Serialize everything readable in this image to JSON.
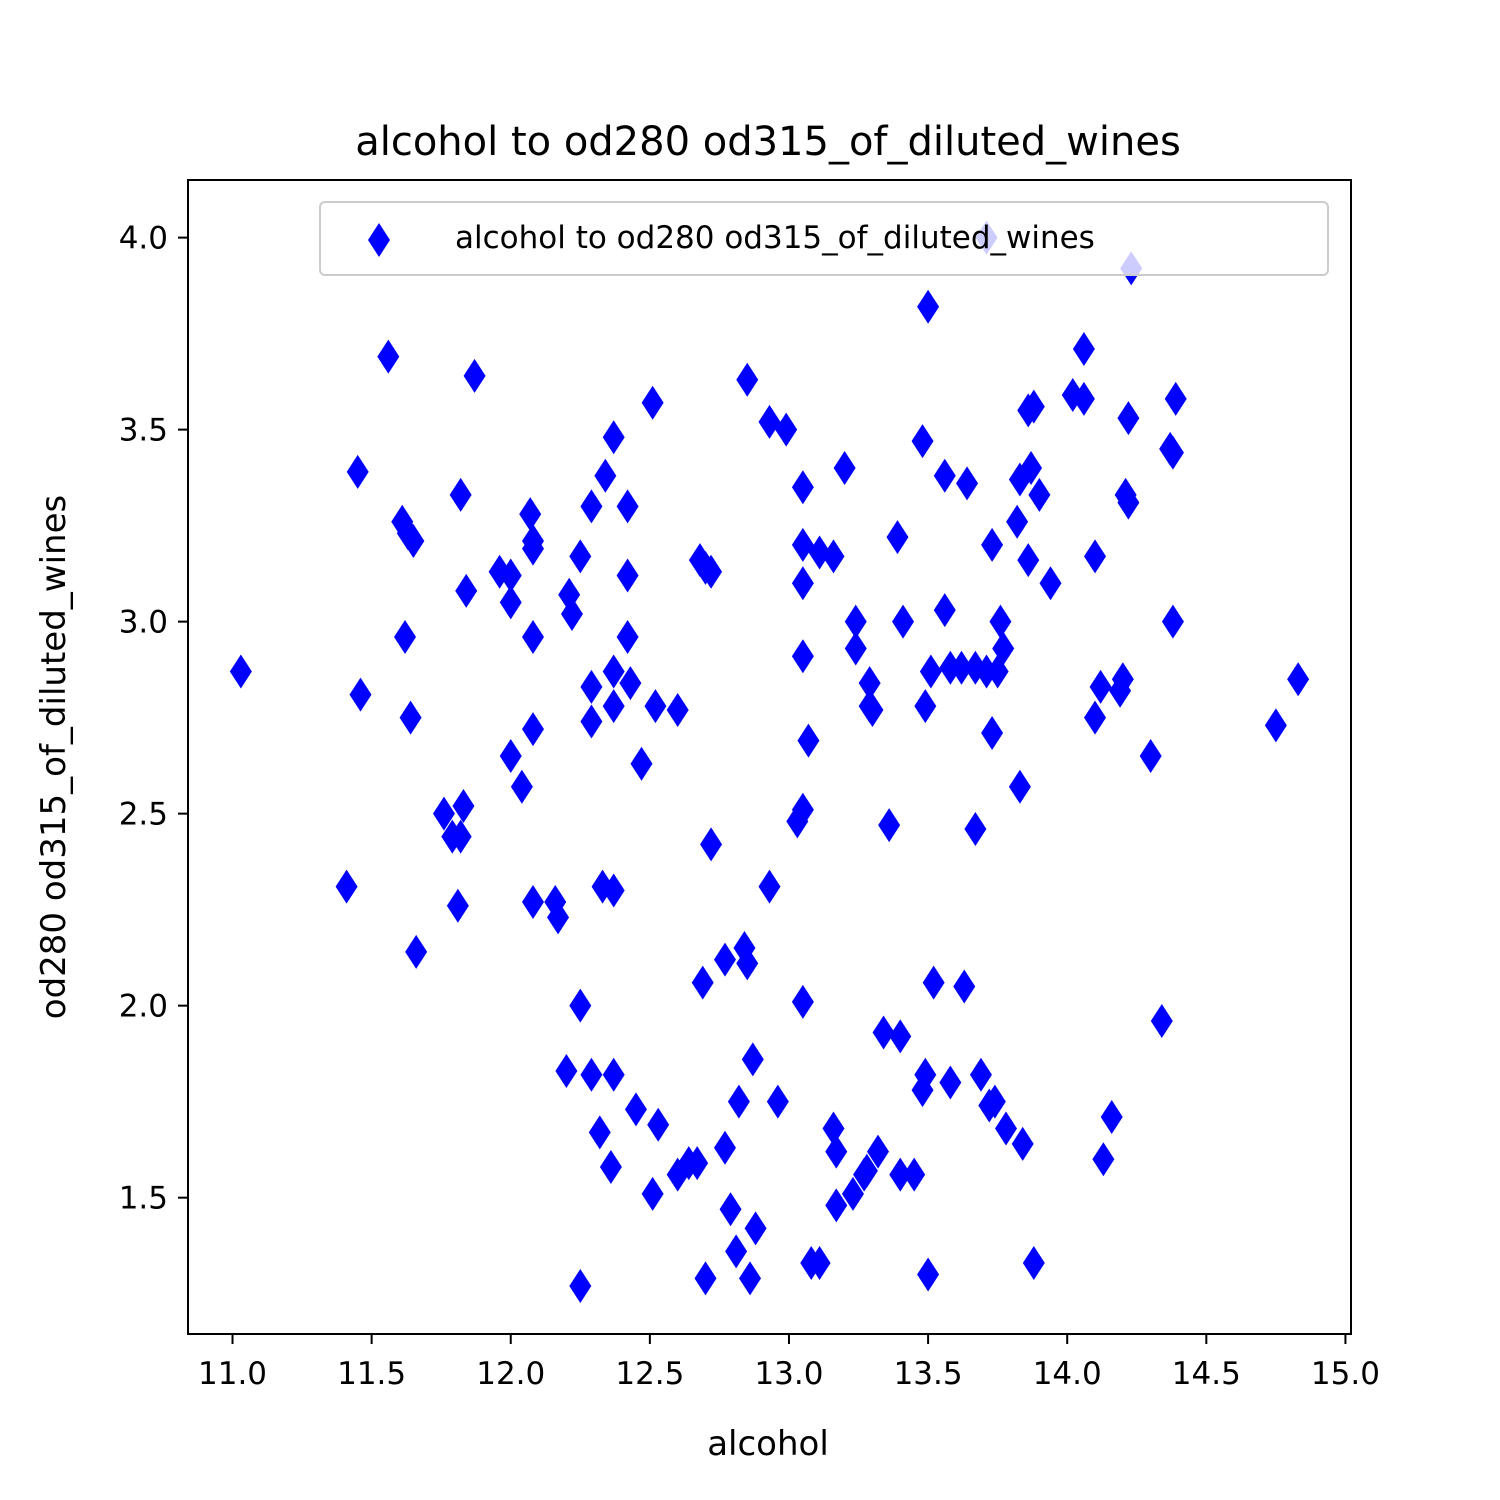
{
  "chart_data": {
    "type": "scatter",
    "title": "alcohol to od280 od315_of_diluted_wines",
    "xlabel": "alcohol",
    "ylabel": "od280 od315_of_diluted_wines",
    "xlim": [
      10.84,
      15.02
    ],
    "ylim": [
      1.145,
      4.15
    ],
    "xticks": [
      "11.0",
      "11.5",
      "12.0",
      "12.5",
      "13.0",
      "13.5",
      "14.0",
      "14.5",
      "15.0"
    ],
    "yticks": [
      "1.5",
      "2.0",
      "2.5",
      "3.0",
      "3.5",
      "4.0"
    ],
    "grid": false,
    "legend_placement": "upper right",
    "series": [
      {
        "name": "alcohol to od280 od315_of_diluted_wines",
        "marker": "thin-diamond",
        "color": "#0000ff",
        "points": [
          [
            11.03,
            2.87
          ],
          [
            11.41,
            2.31
          ],
          [
            11.45,
            3.39
          ],
          [
            11.46,
            2.81
          ],
          [
            11.56,
            3.69
          ],
          [
            11.61,
            3.26
          ],
          [
            11.62,
            2.96
          ],
          [
            11.63,
            3.23
          ],
          [
            11.64,
            2.75
          ],
          [
            11.65,
            3.21
          ],
          [
            11.66,
            2.14
          ],
          [
            11.76,
            2.5
          ],
          [
            11.79,
            2.44
          ],
          [
            11.81,
            2.26
          ],
          [
            11.82,
            2.44
          ],
          [
            11.82,
            3.33
          ],
          [
            11.83,
            2.52
          ],
          [
            11.84,
            3.08
          ],
          [
            11.87,
            3.64
          ],
          [
            11.96,
            3.13
          ],
          [
            12.0,
            2.65
          ],
          [
            12.0,
            3.05
          ],
          [
            12.0,
            3.12
          ],
          [
            12.04,
            2.57
          ],
          [
            12.07,
            3.28
          ],
          [
            12.08,
            2.72
          ],
          [
            12.08,
            2.96
          ],
          [
            12.08,
            3.19
          ],
          [
            12.08,
            3.21
          ],
          [
            12.08,
            2.27
          ],
          [
            12.16,
            2.27
          ],
          [
            12.17,
            2.23
          ],
          [
            12.2,
            1.83
          ],
          [
            12.21,
            3.07
          ],
          [
            12.22,
            3.02
          ],
          [
            12.25,
            3.17
          ],
          [
            12.25,
            2.0
          ],
          [
            12.25,
            1.27
          ],
          [
            12.29,
            1.82
          ],
          [
            12.29,
            2.74
          ],
          [
            12.29,
            2.83
          ],
          [
            12.29,
            3.3
          ],
          [
            12.32,
            1.67
          ],
          [
            12.33,
            2.31
          ],
          [
            12.34,
            3.38
          ],
          [
            12.36,
            1.58
          ],
          [
            12.37,
            1.82
          ],
          [
            12.37,
            2.3
          ],
          [
            12.37,
            2.87
          ],
          [
            12.37,
            2.78
          ],
          [
            12.37,
            3.48
          ],
          [
            12.42,
            3.3
          ],
          [
            12.42,
            2.96
          ],
          [
            12.42,
            3.12
          ],
          [
            12.43,
            2.84
          ],
          [
            12.45,
            1.73
          ],
          [
            12.47,
            2.63
          ],
          [
            12.51,
            1.51
          ],
          [
            12.51,
            3.57
          ],
          [
            12.52,
            2.78
          ],
          [
            12.53,
            1.69
          ],
          [
            12.6,
            1.56
          ],
          [
            12.6,
            2.77
          ],
          [
            12.64,
            1.59
          ],
          [
            12.67,
            1.59
          ],
          [
            12.68,
            3.16
          ],
          [
            12.69,
            2.06
          ],
          [
            12.7,
            3.14
          ],
          [
            12.7,
            1.29
          ],
          [
            12.72,
            2.42
          ],
          [
            12.72,
            3.13
          ],
          [
            12.77,
            2.12
          ],
          [
            12.77,
            1.63
          ],
          [
            12.79,
            1.47
          ],
          [
            12.81,
            1.36
          ],
          [
            12.82,
            1.75
          ],
          [
            12.84,
            2.15
          ],
          [
            12.85,
            3.63
          ],
          [
            12.85,
            2.11
          ],
          [
            12.86,
            1.29
          ],
          [
            12.87,
            1.86
          ],
          [
            12.88,
            1.42
          ],
          [
            12.93,
            3.52
          ],
          [
            12.93,
            2.31
          ],
          [
            12.96,
            1.75
          ],
          [
            12.99,
            3.5
          ],
          [
            13.03,
            2.48
          ],
          [
            13.05,
            3.35
          ],
          [
            13.05,
            3.2
          ],
          [
            13.05,
            3.1
          ],
          [
            13.05,
            2.91
          ],
          [
            13.05,
            2.51
          ],
          [
            13.05,
            2.01
          ],
          [
            13.07,
            2.69
          ],
          [
            13.08,
            1.33
          ],
          [
            13.11,
            1.33
          ],
          [
            13.11,
            3.18
          ],
          [
            13.16,
            3.17
          ],
          [
            13.16,
            1.68
          ],
          [
            13.17,
            1.62
          ],
          [
            13.17,
            1.48
          ],
          [
            13.2,
            3.4
          ],
          [
            13.23,
            1.51
          ],
          [
            13.24,
            2.93
          ],
          [
            13.24,
            3.0
          ],
          [
            13.27,
            1.56
          ],
          [
            13.28,
            1.57
          ],
          [
            13.29,
            2.78
          ],
          [
            13.29,
            2.84
          ],
          [
            13.3,
            2.77
          ],
          [
            13.32,
            1.62
          ],
          [
            13.34,
            1.93
          ],
          [
            13.36,
            2.47
          ],
          [
            13.39,
            3.22
          ],
          [
            13.4,
            1.92
          ],
          [
            13.4,
            1.56
          ],
          [
            13.41,
            3.0
          ],
          [
            13.45,
            1.56
          ],
          [
            13.48,
            3.47
          ],
          [
            13.48,
            1.78
          ],
          [
            13.49,
            2.78
          ],
          [
            13.49,
            1.82
          ],
          [
            13.5,
            3.82
          ],
          [
            13.5,
            1.3
          ],
          [
            13.51,
            2.87
          ],
          [
            13.52,
            2.06
          ],
          [
            13.56,
            3.03
          ],
          [
            13.56,
            3.38
          ],
          [
            13.58,
            2.88
          ],
          [
            13.58,
            1.8
          ],
          [
            13.62,
            2.88
          ],
          [
            13.63,
            2.05
          ],
          [
            13.64,
            3.36
          ],
          [
            13.67,
            2.88
          ],
          [
            13.67,
            2.46
          ],
          [
            13.69,
            1.82
          ],
          [
            13.71,
            2.87
          ],
          [
            13.71,
            4.0
          ],
          [
            13.72,
            1.74
          ],
          [
            13.73,
            2.71
          ],
          [
            13.73,
            3.2
          ],
          [
            13.74,
            1.75
          ],
          [
            13.75,
            2.87
          ],
          [
            13.76,
            3.0
          ],
          [
            13.77,
            2.93
          ],
          [
            13.78,
            1.68
          ],
          [
            13.82,
            3.26
          ],
          [
            13.83,
            3.37
          ],
          [
            13.83,
            2.57
          ],
          [
            13.84,
            1.64
          ],
          [
            13.86,
            3.55
          ],
          [
            13.86,
            3.16
          ],
          [
            13.87,
            3.4
          ],
          [
            13.88,
            3.56
          ],
          [
            13.88,
            1.33
          ],
          [
            13.9,
            3.33
          ],
          [
            13.94,
            3.1
          ],
          [
            14.02,
            3.59
          ],
          [
            14.06,
            3.71
          ],
          [
            14.06,
            3.58
          ],
          [
            14.1,
            2.75
          ],
          [
            14.1,
            3.17
          ],
          [
            14.12,
            2.83
          ],
          [
            14.13,
            1.6
          ],
          [
            14.16,
            1.71
          ],
          [
            14.19,
            2.82
          ],
          [
            14.2,
            2.85
          ],
          [
            14.21,
            3.33
          ],
          [
            14.22,
            3.31
          ],
          [
            14.22,
            3.53
          ],
          [
            14.23,
            3.92
          ],
          [
            14.3,
            2.65
          ],
          [
            14.34,
            1.96
          ],
          [
            14.37,
            3.45
          ],
          [
            14.38,
            3.44
          ],
          [
            14.38,
            3.0
          ],
          [
            14.39,
            3.58
          ],
          [
            14.75,
            2.73
          ],
          [
            14.83,
            2.85
          ]
        ]
      }
    ]
  }
}
